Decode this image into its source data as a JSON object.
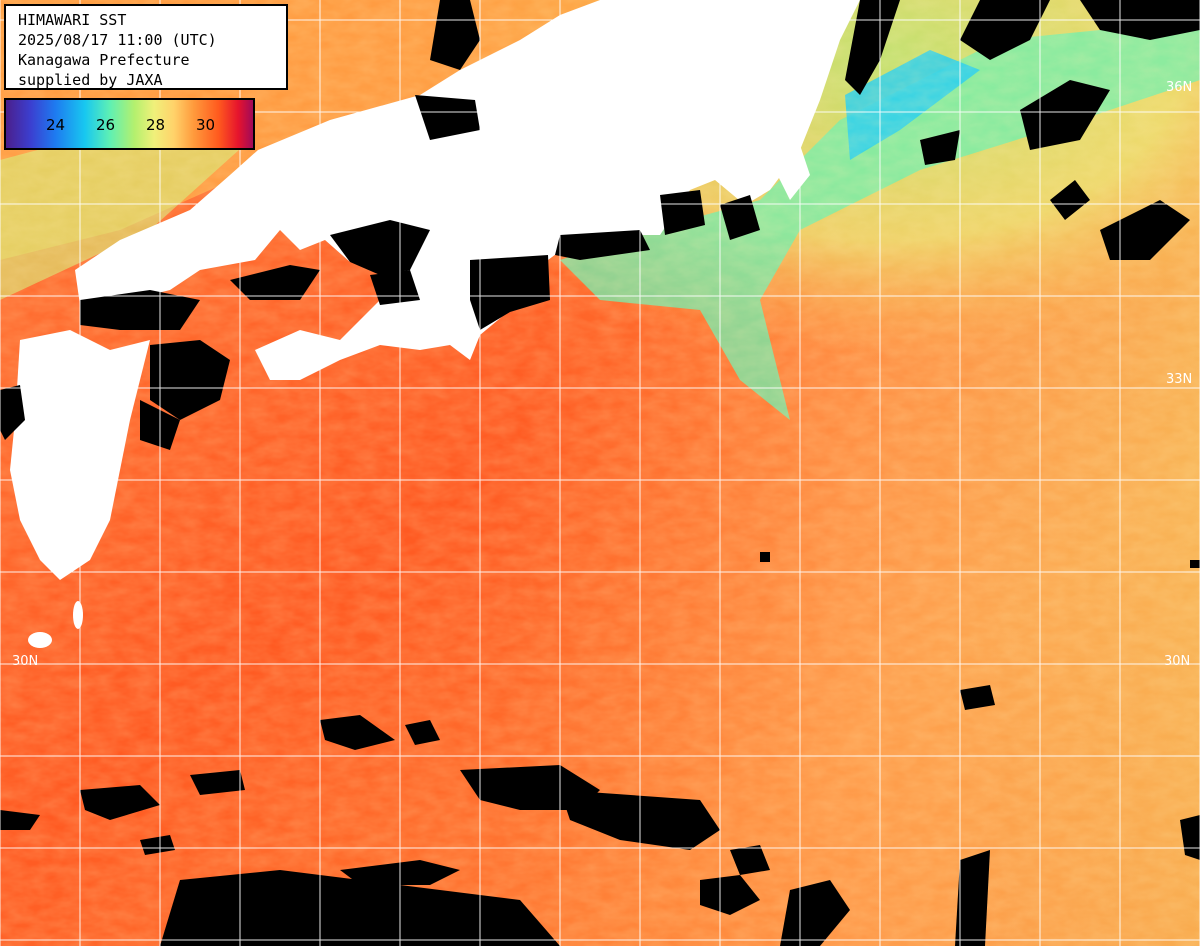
{
  "title_box": {
    "line1": "HIMAWARI SST",
    "line2": "2025/08/17 11:00 (UTC)",
    "line3": "Kanagawa Prefecture",
    "line4": "supplied by JAXA"
  },
  "legend": {
    "labels": [
      "24",
      "26",
      "28",
      "30"
    ]
  },
  "lat_labels": {
    "n36_right": "36N",
    "n33_right": "33N",
    "n30_left": "30N",
    "n30_right": "30N"
  },
  "colors": {
    "land": "#ffffff",
    "no_data": "#000000",
    "grid": "#ffffff",
    "warm_sea": "#ff6a28",
    "cool_sea": "#8ef08c"
  }
}
